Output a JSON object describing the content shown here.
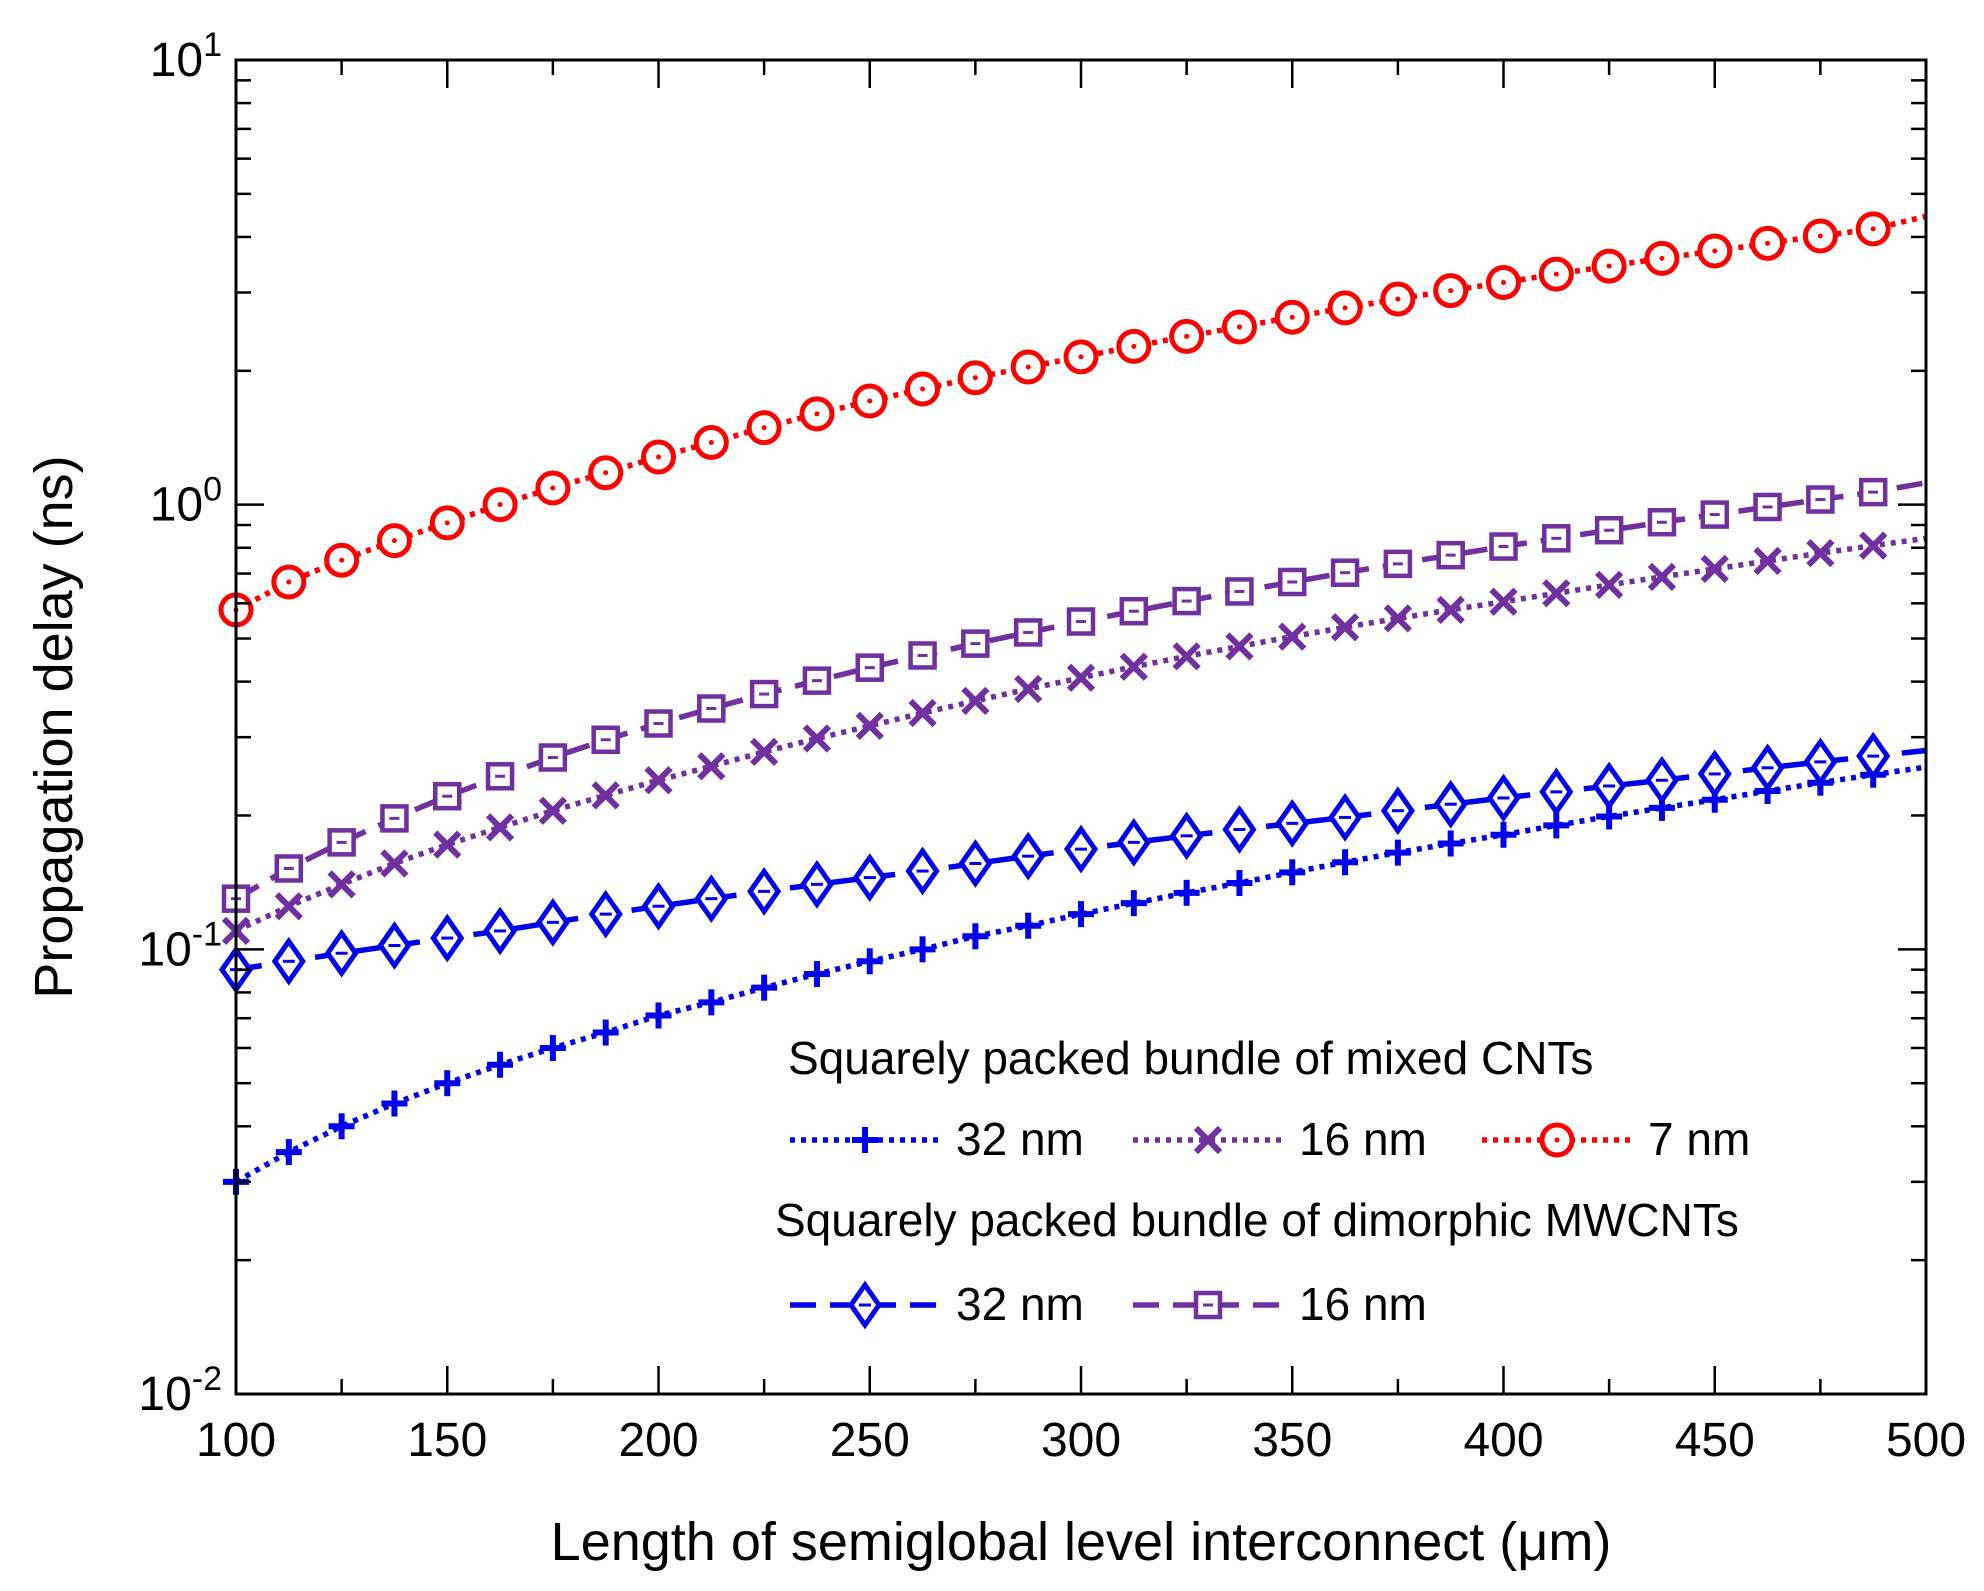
{
  "chart_data": {
    "type": "line",
    "xlabel": "Length of semiglobal level interconnect (μm)",
    "ylabel": "Propagation delay (ns)",
    "xlim": [
      100,
      500
    ],
    "ylim": [
      0.01,
      10
    ],
    "y_scale": "log",
    "x_ticks": [
      100,
      150,
      200,
      250,
      300,
      350,
      400,
      450,
      500
    ],
    "x_tick_labels": [
      "100",
      "150",
      "200",
      "250",
      "300",
      "350",
      "400",
      "450",
      "500"
    ],
    "y_ticks": [
      {
        "value": 10,
        "base": "10",
        "exp": "1"
      },
      {
        "value": 1,
        "base": "10",
        "exp": "0"
      },
      {
        "value": 0.1,
        "base": "10",
        "exp": "-1"
      },
      {
        "value": 0.01,
        "base": "10",
        "exp": "-2"
      }
    ],
    "grid": false,
    "x": [
      100,
      112.5,
      125,
      137.5,
      150,
      162.5,
      175,
      187.5,
      200,
      212.5,
      225,
      237.5,
      250,
      262.5,
      275,
      287.5,
      300,
      312.5,
      325,
      337.5,
      350,
      362.5,
      375,
      387.5,
      400,
      412.5,
      425,
      437.5,
      450,
      462.5,
      475,
      487.5,
      500
    ],
    "legend": {
      "position": "lower-right",
      "groups": [
        {
          "title": "Squarely packed bundle of mixed CNTs",
          "entries": [
            "32 nm",
            "16 nm",
            "7 nm"
          ]
        },
        {
          "title": "Squarely packed bundle of dimorphic MWCNTs",
          "entries": [
            "32 nm",
            "16 nm"
          ]
        }
      ]
    },
    "series": [
      {
        "name": "32 nm",
        "group": "Squarely packed bundle of mixed CNTs",
        "color": "#0000ee",
        "dash": "dot",
        "marker": "plus",
        "values": [
          0.03,
          0.035,
          0.04,
          0.045,
          0.05,
          0.055,
          0.06,
          0.065,
          0.071,
          0.076,
          0.082,
          0.088,
          0.094,
          0.1,
          0.107,
          0.113,
          0.12,
          0.127,
          0.134,
          0.141,
          0.149,
          0.157,
          0.165,
          0.173,
          0.181,
          0.19,
          0.199,
          0.208,
          0.217,
          0.227,
          0.237,
          0.247,
          0.257
        ]
      },
      {
        "name": "16 nm",
        "group": "Squarely packed bundle of mixed CNTs",
        "color": "#7030a0",
        "dash": "dot",
        "marker": "x",
        "values": [
          0.11,
          0.125,
          0.14,
          0.156,
          0.172,
          0.188,
          0.205,
          0.222,
          0.24,
          0.258,
          0.278,
          0.298,
          0.318,
          0.34,
          0.362,
          0.385,
          0.408,
          0.432,
          0.456,
          0.48,
          0.505,
          0.53,
          0.555,
          0.58,
          0.605,
          0.632,
          0.66,
          0.688,
          0.717,
          0.747,
          0.778,
          0.809,
          0.84
        ]
      },
      {
        "name": "7 nm",
        "group": "Squarely packed bundle of mixed CNTs",
        "color": "#ff0000",
        "dash": "dot",
        "marker": "circle",
        "values": [
          0.58,
          0.67,
          0.75,
          0.83,
          0.91,
          1.0,
          1.09,
          1.18,
          1.28,
          1.38,
          1.49,
          1.6,
          1.71,
          1.82,
          1.93,
          2.04,
          2.15,
          2.27,
          2.39,
          2.51,
          2.64,
          2.77,
          2.9,
          3.03,
          3.16,
          3.3,
          3.44,
          3.58,
          3.72,
          3.87,
          4.02,
          4.17,
          4.45
        ]
      },
      {
        "name": "32 nm",
        "group": "Squarely packed bundle of dimorphic MWCNTs",
        "color": "#0000ee",
        "dash": "dash",
        "marker": "diamond",
        "values": [
          0.09,
          0.094,
          0.098,
          0.102,
          0.106,
          0.11,
          0.115,
          0.12,
          0.125,
          0.13,
          0.135,
          0.14,
          0.145,
          0.15,
          0.156,
          0.162,
          0.168,
          0.174,
          0.18,
          0.186,
          0.192,
          0.198,
          0.205,
          0.212,
          0.219,
          0.226,
          0.233,
          0.24,
          0.248,
          0.256,
          0.264,
          0.272,
          0.28
        ]
      },
      {
        "name": "16 nm",
        "group": "Squarely packed bundle of dimorphic MWCNTs",
        "color": "#7030a0",
        "dash": "dash",
        "marker": "square",
        "values": [
          0.13,
          0.152,
          0.174,
          0.197,
          0.221,
          0.245,
          0.27,
          0.296,
          0.322,
          0.348,
          0.375,
          0.402,
          0.43,
          0.458,
          0.487,
          0.516,
          0.546,
          0.576,
          0.607,
          0.638,
          0.67,
          0.703,
          0.736,
          0.77,
          0.805,
          0.84,
          0.876,
          0.913,
          0.95,
          0.988,
          1.027,
          1.067,
          1.12
        ]
      }
    ]
  }
}
